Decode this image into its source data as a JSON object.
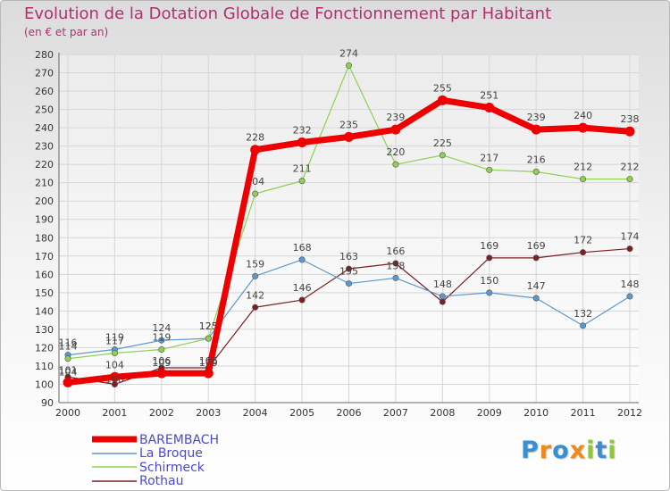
{
  "title": "Evolution de la Dotation Globale de Fonctionnement par Habitant",
  "subtitle": "(en € et par an)",
  "logo": {
    "text": "Proxiti",
    "letters": [
      "P",
      "r",
      "o",
      "x",
      "i",
      "t",
      "i"
    ],
    "colors": [
      "#3a8fd0",
      "#f08a1c",
      "#3a8fd0",
      "#f08a1c",
      "#8dc63f",
      "#3a8fd0",
      "#8dc63f"
    ]
  },
  "chart_data": {
    "type": "line",
    "title": "Evolution de la Dotation Globale de Fonctionnement par Habitant",
    "subtitle": "(en € et par an)",
    "xlabel": "",
    "ylabel": "",
    "ylim": [
      90,
      280
    ],
    "ytick_step": 10,
    "yticks": [
      "90",
      "100",
      "110",
      "120",
      "130",
      "140",
      "150",
      "160",
      "170",
      "180",
      "190",
      "200",
      "210",
      "220",
      "230",
      "240",
      "250",
      "260",
      "270",
      "280"
    ],
    "categories": [
      "2000",
      "2001",
      "2002",
      "2003",
      "2004",
      "2005",
      "2006",
      "2007",
      "2008",
      "2009",
      "2010",
      "2011",
      "2012"
    ],
    "grid": true,
    "legend_position": "bottom-left",
    "series": [
      {
        "name": "Rothau",
        "color": "#7a1f22",
        "width": 1.2,
        "values": [
          104,
          100,
          109,
          109,
          142,
          146,
          163,
          166,
          145,
          169,
          169,
          172,
          174
        ],
        "labels": [
          "",
          "",
          "",
          "",
          "142",
          "146",
          "163",
          "166",
          "",
          "169",
          "169",
          "172",
          "174"
        ]
      },
      {
        "name": "La Broque",
        "color": "#5b98cf",
        "width": 1.2,
        "values": [
          116,
          119,
          124,
          125,
          159,
          168,
          155,
          158,
          148,
          150,
          147,
          132,
          148
        ],
        "labels": [
          "116",
          "119",
          "124",
          "125",
          "159",
          "168",
          "155",
          "158",
          "148",
          "150",
          "147",
          "132",
          "148"
        ]
      },
      {
        "name": "Schirmeck",
        "color": "#8fd050",
        "width": 1.2,
        "values": [
          114,
          117,
          119,
          125,
          204,
          211,
          274,
          220,
          225,
          217,
          216,
          212,
          212
        ],
        "labels": [
          "114",
          "117",
          "119",
          "125",
          "204",
          "211",
          "274",
          "220",
          "225",
          "217",
          "216",
          "212",
          "212"
        ]
      },
      {
        "name": "BAREMBACH",
        "color": "#ee0000",
        "width": 7,
        "values": [
          101,
          104,
          106,
          106,
          228,
          232,
          235,
          239,
          255,
          251,
          239,
          240,
          238
        ],
        "labels": [
          "101",
          "104",
          "106",
          "106",
          "228",
          "232",
          "235",
          "239",
          "255",
          "251",
          "239",
          "240",
          "238"
        ]
      }
    ],
    "extra_labels": [
      "104",
      "100",
      "109",
      "109"
    ],
    "legend": [
      "BAREMBACH",
      "La Broque",
      "Schirmeck",
      "Rothau"
    ]
  }
}
